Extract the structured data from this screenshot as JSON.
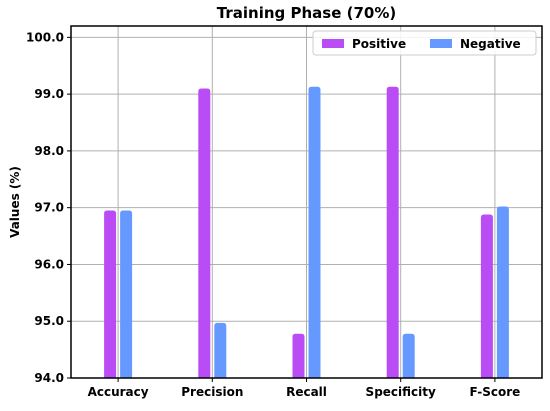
{
  "chart_data": {
    "type": "bar",
    "title": "Training Phase (70%)",
    "xlabel": "",
    "ylabel": "Values (%)",
    "categories": [
      "Accuracy",
      "Precision",
      "Recall",
      "Specificity",
      "F-Score"
    ],
    "series": [
      {
        "name": "Positive",
        "color": "#b94cf5",
        "values": [
          96.95,
          99.1,
          94.78,
          99.13,
          96.88
        ]
      },
      {
        "name": "Negative",
        "color": "#6699ff",
        "values": [
          96.95,
          94.97,
          99.13,
          94.78,
          97.02
        ]
      }
    ],
    "ylim": [
      94.0,
      100.2
    ],
    "yticks": [
      "94.0",
      "95.0",
      "96.0",
      "97.0",
      "98.0",
      "99.0",
      "100.0"
    ],
    "grid": true,
    "legend_position": "top-right",
    "legend_layout": "horizontal"
  }
}
